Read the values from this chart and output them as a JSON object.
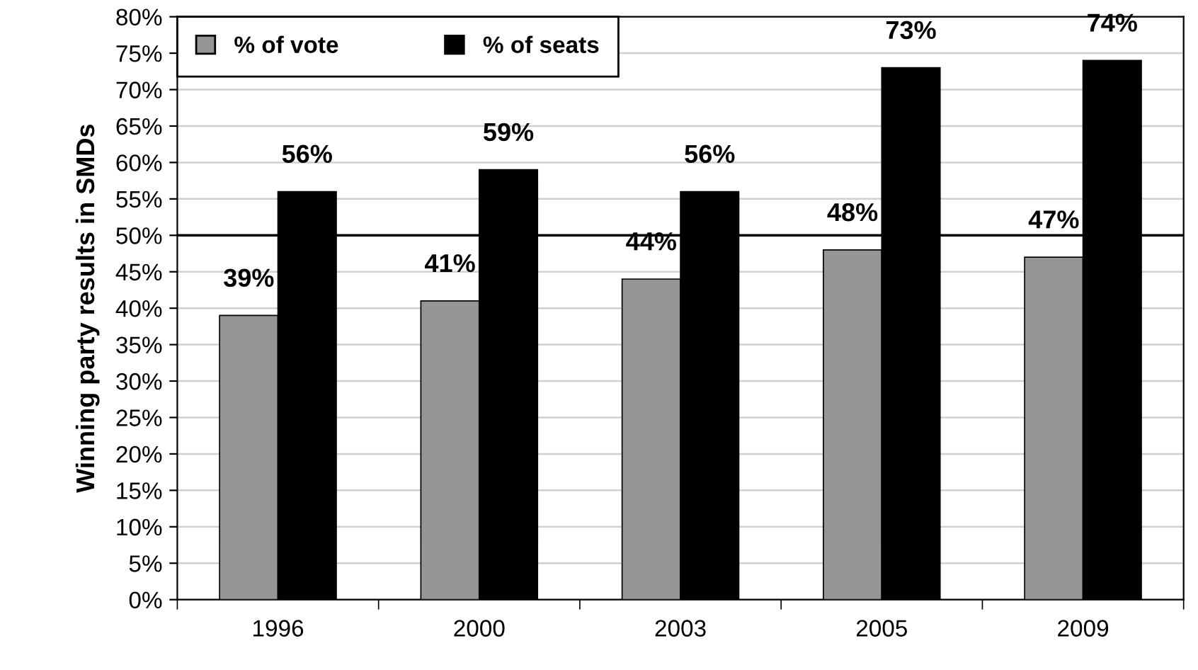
{
  "chart_data": {
    "type": "bar",
    "ylabel": "Winning party results in SMDs",
    "categories": [
      "1996",
      "2000",
      "2003",
      "2005",
      "2009"
    ],
    "series": [
      {
        "name": "% of vote",
        "color": "#969696",
        "values": [
          39,
          41,
          44,
          48,
          47
        ],
        "value_labels": [
          "39%",
          "41%",
          "44%",
          "48%",
          "47%"
        ]
      },
      {
        "name": "% of seats",
        "color": "#000000",
        "values": [
          56,
          59,
          56,
          73,
          74
        ],
        "value_labels": [
          "56%",
          "59%",
          "56%",
          "73%",
          "74%"
        ]
      }
    ],
    "ylim": [
      0,
      80
    ],
    "yticks": [
      {
        "value": 0,
        "label": "0%"
      },
      {
        "value": 5,
        "label": "5%"
      },
      {
        "value": 10,
        "label": "10%"
      },
      {
        "value": 15,
        "label": "15%"
      },
      {
        "value": 20,
        "label": "20%"
      },
      {
        "value": 25,
        "label": "25%"
      },
      {
        "value": 30,
        "label": "30%"
      },
      {
        "value": 35,
        "label": "35%"
      },
      {
        "value": 40,
        "label": "40%"
      },
      {
        "value": 45,
        "label": "45%"
      },
      {
        "value": 50,
        "label": "50%"
      },
      {
        "value": 55,
        "label": "55%"
      },
      {
        "value": 60,
        "label": "60%"
      },
      {
        "value": 65,
        "label": "65%"
      },
      {
        "value": 70,
        "label": "70%"
      },
      {
        "value": 75,
        "label": "75%"
      },
      {
        "value": 80,
        "label": "80%"
      }
    ],
    "ref_lines": [
      {
        "axis": "y",
        "value": 50,
        "color": "#000000"
      }
    ],
    "grid": "y",
    "legend": "top left"
  }
}
